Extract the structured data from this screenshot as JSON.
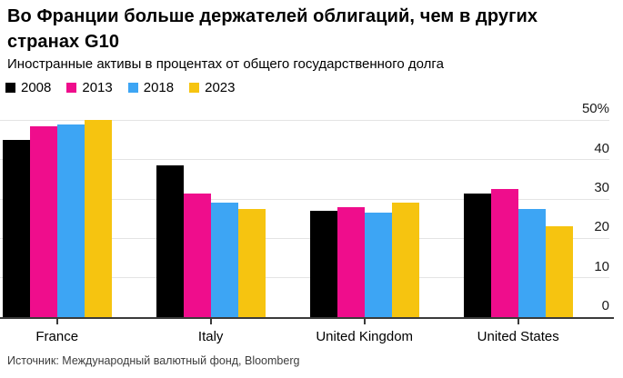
{
  "header": {
    "title_lines": [
      "Во Франции больше держателей облигаций, чем в других",
      "странах G10"
    ],
    "subtitle": "Иностранные активы в процентах от общего государственного долга"
  },
  "footer": {
    "source": "Источник: Международный валютный фонд, Bloomberg"
  },
  "colors": {
    "series_2008": "#000000",
    "series_2013": "#ef0d8c",
    "series_2018": "#3da5f4",
    "series_2023": "#f6c410",
    "grid": "#e4e4e4",
    "axis": "#3a3a3a"
  },
  "chart_data": {
    "type": "bar",
    "title": "Во Франции больше держателей облигаций, чем в других странах G10",
    "subtitle": "Иностранные активы в процентах от общего государственного долга",
    "categories": [
      "France",
      "Italy",
      "United Kingdom",
      "United States"
    ],
    "series": [
      {
        "name": "2008",
        "color": "#000000",
        "values": [
          45,
          38.5,
          27,
          31.5
        ]
      },
      {
        "name": "2013",
        "color": "#ef0d8c",
        "values": [
          48.5,
          31.5,
          28,
          32.5
        ]
      },
      {
        "name": "2018",
        "color": "#3da5f4",
        "values": [
          49,
          29,
          26.5,
          27.5
        ]
      },
      {
        "name": "2023",
        "color": "#f6c410",
        "values": [
          50,
          27.5,
          29,
          23
        ]
      }
    ],
    "xlabel": "",
    "ylabel": "",
    "ylim": [
      0,
      50
    ],
    "y_ticks": [
      0,
      10,
      20,
      30,
      40,
      50
    ],
    "y_tick_labels": [
      "0",
      "10",
      "20",
      "30",
      "40",
      "50%"
    ],
    "grid": true,
    "legend_position": "top",
    "axis_side": "right"
  }
}
